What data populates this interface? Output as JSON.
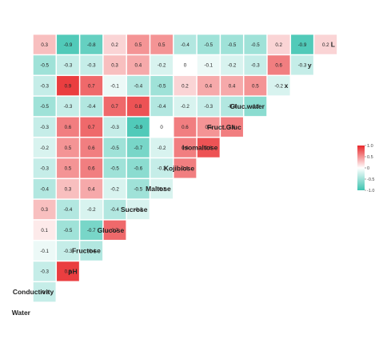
{
  "chart_data": {
    "type": "heatmap",
    "title": "",
    "variables": [
      "Water",
      "Conductivity",
      "pH",
      "Fructose",
      "Glucose",
      "Sucrose",
      "Maltose",
      "Kojibiose",
      "Isomaltose",
      "Fruct.Gluc",
      "Gluc.water",
      "x",
      "y",
      "L"
    ],
    "rows": [
      {
        "label": "Water",
        "values": []
      },
      {
        "label": "Conductivity",
        "values": [
          -0.3
        ]
      },
      {
        "label": "pH",
        "values": [
          -0.3,
          0.9
        ]
      },
      {
        "label": "Fructose",
        "values": [
          -0.1,
          -0.3,
          -0.4
        ]
      },
      {
        "label": "Glucose",
        "values": [
          0.1,
          -0.5,
          -0.7,
          0.7
        ]
      },
      {
        "label": "Sucrose",
        "values": [
          0.3,
          -0.4,
          -0.2,
          -0.4,
          -0.2
        ]
      },
      {
        "label": "Maltose",
        "values": [
          -0.4,
          0.3,
          0.4,
          -0.2,
          -0.5,
          -0.2
        ]
      },
      {
        "label": "Kojibiose",
        "values": [
          -0.3,
          0.5,
          0.6,
          -0.5,
          -0.6,
          -0.3,
          0.6
        ]
      },
      {
        "label": "Isomaltose",
        "values": [
          -0.2,
          0.5,
          0.6,
          -0.5,
          -0.7,
          -0.2,
          0.6,
          0.8
        ]
      },
      {
        "label": "Fruct.Gluc",
        "values": [
          -0.3,
          0.6,
          0.7,
          -0.3,
          -0.9,
          0,
          0.6,
          0.5,
          0.6
        ]
      },
      {
        "label": "Gluc.water",
        "values": [
          -0.5,
          -0.3,
          -0.4,
          0.7,
          0.8,
          -0.4,
          -0.2,
          -0.3,
          -0.4,
          -0.6
        ]
      },
      {
        "label": "x",
        "values": [
          -0.3,
          0.9,
          0.7,
          -0.1,
          -0.4,
          -0.5,
          0.2,
          0.4,
          0.4,
          0.5,
          -0.2
        ]
      },
      {
        "label": "y",
        "values": [
          -0.5,
          -0.3,
          -0.3,
          0.3,
          0.4,
          -0.2,
          0,
          -0.1,
          -0.2,
          -0.3,
          0.6,
          -0.3
        ]
      },
      {
        "label": "L",
        "values": [
          0.3,
          -0.9,
          -0.8,
          0.2,
          0.5,
          0.5,
          -0.4,
          -0.5,
          -0.5,
          -0.5,
          0.2,
          -0.9,
          0.2
        ]
      }
    ],
    "color_scale": {
      "min": -1.0,
      "max": 1.0,
      "low_color": "#3ec4b1",
      "mid_color": "#ffffff",
      "high_color": "#e8282b"
    },
    "legend": {
      "position": "right",
      "ticks": [
        "1.0",
        "0.5",
        "0",
        "-0.5",
        "-1.0"
      ]
    }
  }
}
